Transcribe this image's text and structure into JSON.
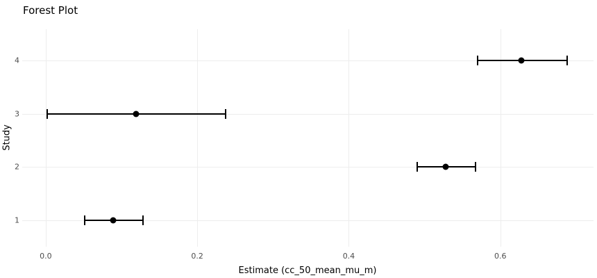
{
  "chart_data": {
    "type": "scatter",
    "subtype": "forest-plot",
    "title": "Forest Plot",
    "xlabel": "Estimate (cc_50_mean_mu_m)",
    "ylabel": "Study",
    "x_ticks": [
      0.0,
      0.2,
      0.4,
      0.6
    ],
    "x_tick_labels": [
      "0.0",
      "0.2",
      "0.4",
      "0.6"
    ],
    "y_ticks": [
      1,
      2,
      3,
      4
    ],
    "y_tick_labels": [
      "1",
      "2",
      "3",
      "4"
    ],
    "x_range": [
      -0.031,
      0.723
    ],
    "y_range": [
      0.504,
      4.587
    ],
    "grid": "major-only",
    "legend": "none",
    "points": [
      {
        "study": 1,
        "estimate": 0.089,
        "ci_low": 0.051,
        "ci_high": 0.128
      },
      {
        "study": 2,
        "estimate": 0.528,
        "ci_low": 0.49,
        "ci_high": 0.567
      },
      {
        "study": 3,
        "estimate": 0.119,
        "ci_low": 0.002,
        "ci_high": 0.237
      },
      {
        "study": 4,
        "estimate": 0.628,
        "ci_low": 0.57,
        "ci_high": 0.688
      }
    ],
    "colors": {
      "point": "#000000",
      "errorbar": "#000000",
      "grid": "#ededed",
      "tick_label": "#4d4d4d",
      "axis_label": "#000000",
      "background": "#ffffff"
    }
  }
}
